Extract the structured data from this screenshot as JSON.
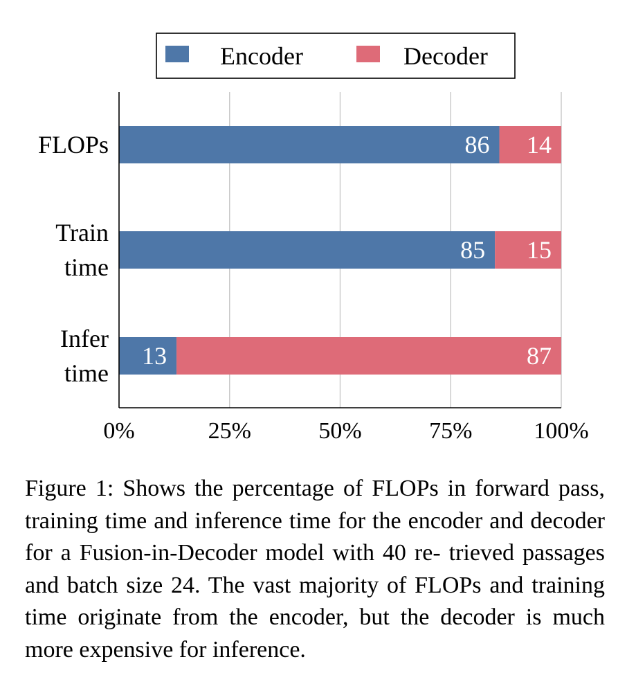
{
  "chart_data": {
    "type": "bar",
    "orientation": "horizontal",
    "stacked": true,
    "normalized_percent": true,
    "categories": [
      [
        "FLOPs"
      ],
      [
        "Train",
        "time"
      ],
      [
        "Infer",
        "time"
      ]
    ],
    "series": [
      {
        "name": "Encoder",
        "color": "#4e77a8",
        "values": [
          86,
          85,
          13
        ]
      },
      {
        "name": "Decoder",
        "color": "#de6b78",
        "values": [
          14,
          15,
          87
        ]
      }
    ],
    "xlim": [
      0,
      100
    ],
    "xticks": [
      0,
      25,
      50,
      75,
      100
    ],
    "xtick_labels": [
      "0%",
      "25%",
      "50%",
      "75%",
      "100%"
    ],
    "grid": "vertical",
    "legend_position": "top-center",
    "title": "",
    "xlabel": "",
    "ylabel": ""
  },
  "caption": {
    "text": "Figure 1: Shows the percentage of FLOPs in forward pass, training time and inference time for the encoder and decoder for a Fusion-in-Decoder model with 40 re- trieved passages and batch size 24. The vast majority of FLOPs and training time originate from the encoder, but the decoder is much more expensive for inference."
  }
}
